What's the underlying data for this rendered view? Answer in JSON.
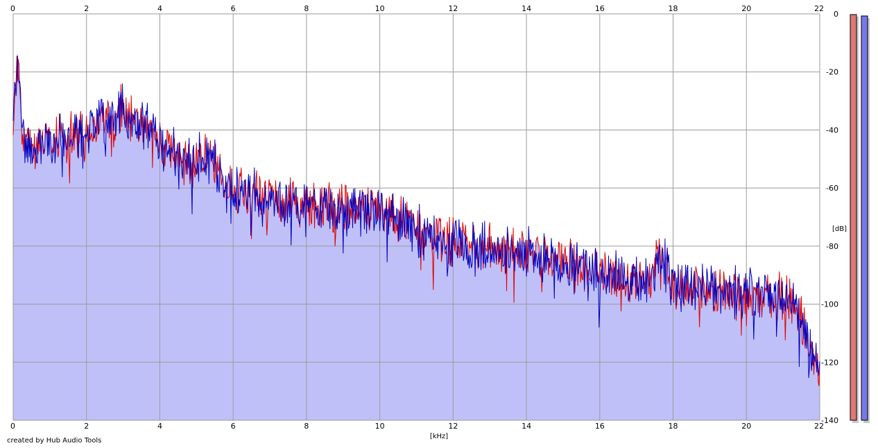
{
  "credit": "created by Hub Audio Tools",
  "colors": {
    "background": "#ffffff",
    "fill": "#c0c0f8",
    "grid": "#9a9a9a",
    "left_channel": "#e00000",
    "right_channel": "#0000c0",
    "left_meter": "#e07878",
    "right_meter": "#7878e8"
  },
  "chart_data": {
    "type": "line",
    "title": "",
    "xlabel": "[kHz]",
    "ylabel": "[dB]",
    "xlim": [
      0,
      22
    ],
    "ylim": [
      -140,
      0
    ],
    "x_ticks": [
      "0",
      "2",
      "4",
      "6",
      "8",
      "10",
      "12",
      "14",
      "16",
      "18",
      "20",
      "22"
    ],
    "y_ticks": [
      "0",
      "-20",
      "-40",
      "-60",
      "-80",
      "-100",
      "-120",
      "-140"
    ],
    "grid": true,
    "fill_under": true,
    "channel_meters": [
      "left",
      "right"
    ],
    "envelope_khz": [
      0,
      0.05,
      0.12,
      0.2,
      0.3,
      0.5,
      0.8,
      1.2,
      1.6,
      2.0,
      2.4,
      2.8,
      2.95,
      3.2,
      3.6,
      3.9,
      4.2,
      4.6,
      5.0,
      5.3,
      5.6,
      5.8,
      6.2,
      6.8,
      7.4,
      8.0,
      8.6,
      9.2,
      9.8,
      10.4,
      11.0,
      11.6,
      12.2,
      12.8,
      13.4,
      14.0,
      14.6,
      15.2,
      15.8,
      16.4,
      17.0,
      17.4,
      17.6,
      18.0,
      18.6,
      19.2,
      19.8,
      20.4,
      20.8,
      21.1,
      21.3,
      21.5,
      21.7,
      21.85,
      22.0
    ],
    "envelope_db": [
      -38,
      -22,
      -16,
      -26,
      -42,
      -44,
      -42,
      -41,
      -40,
      -38,
      -36,
      -34,
      -28,
      -34,
      -37,
      -40,
      -44,
      -47,
      -49,
      -46,
      -52,
      -57,
      -59,
      -60,
      -63,
      -64,
      -65,
      -66,
      -66,
      -68,
      -72,
      -75,
      -77,
      -78,
      -79,
      -80,
      -82,
      -84,
      -86,
      -88,
      -90,
      -89,
      -80,
      -91,
      -92,
      -93,
      -94,
      -95,
      -95,
      -96,
      -97,
      -102,
      -110,
      -120,
      -122
    ]
  }
}
